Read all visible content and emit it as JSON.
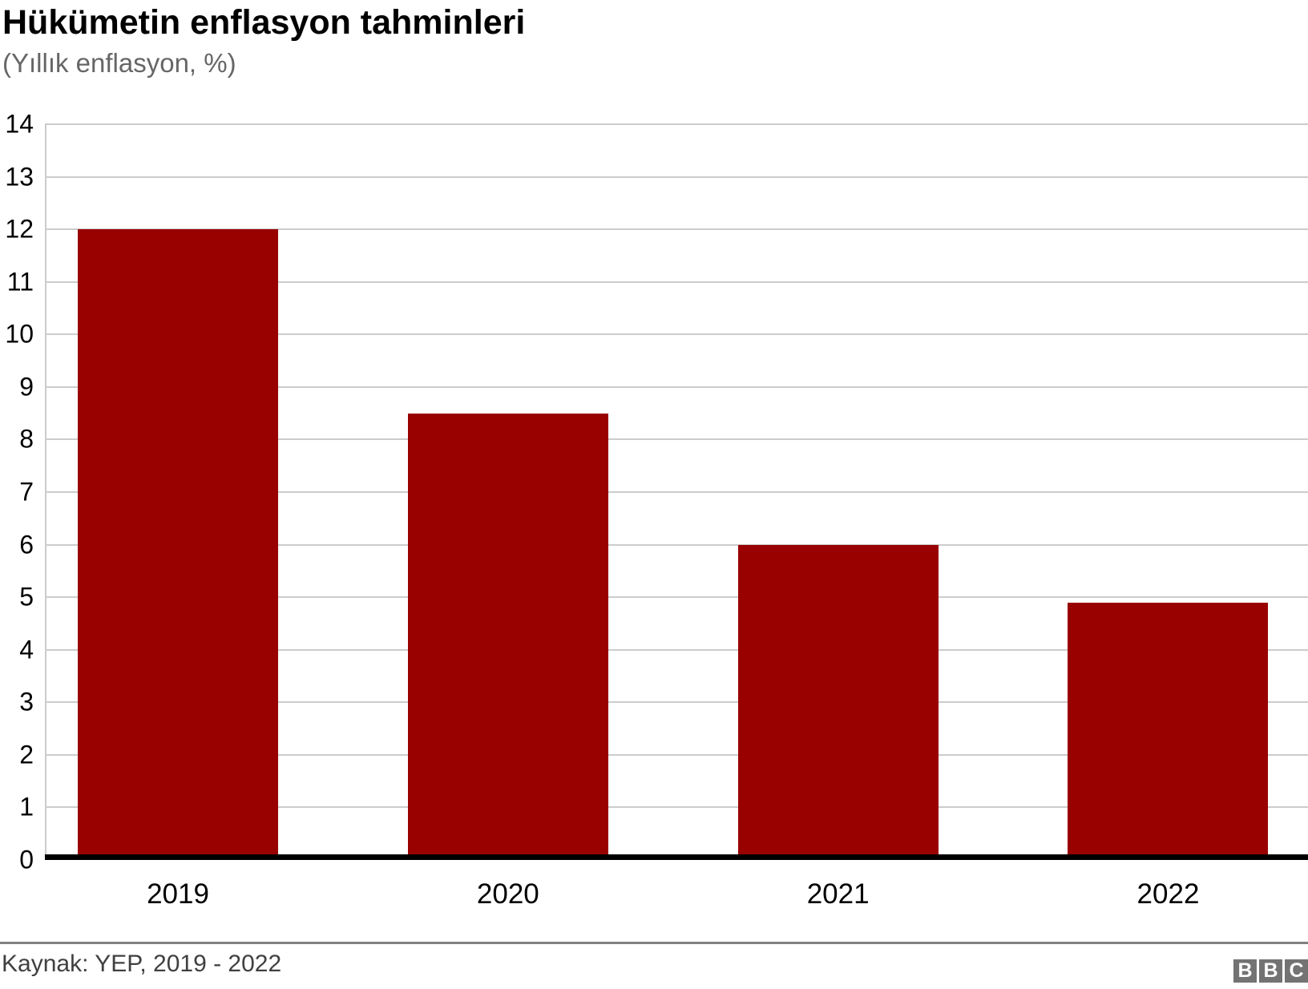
{
  "header": {
    "title": "Hükümetin enflasyon tahminleri",
    "subtitle": "(Yıllık enflasyon, %)"
  },
  "chart_data": {
    "type": "bar",
    "title": "Hükümetin enflasyon tahminleri",
    "subtitle": "(Yıllık enflasyon, %)",
    "categories": [
      "2019",
      "2020",
      "2021",
      "2022"
    ],
    "values": [
      12,
      8.5,
      6,
      4.9
    ],
    "xlabel": "",
    "ylabel": "Yıllık enflasyon, %",
    "ylim": [
      0,
      14
    ],
    "ytick_step": 1,
    "yticks": [
      0,
      1,
      2,
      3,
      4,
      5,
      6,
      7,
      8,
      9,
      10,
      11,
      12,
      13,
      14
    ],
    "grid": true,
    "legend": "none",
    "bar_color": "#990000"
  },
  "footer": {
    "source": "Kaynak: YEP, 2019 - 2022",
    "logo_letters": [
      "B",
      "B",
      "C"
    ]
  },
  "colors": {
    "background": "#ffffff",
    "bar": "#990000",
    "grid": "#cccccc",
    "axis_line": "#000000",
    "title": "#000000",
    "subtitle": "#666666",
    "tick_labels": "#000000",
    "source_text": "#404040",
    "separator": "#808080",
    "logo_background": "#737373"
  }
}
